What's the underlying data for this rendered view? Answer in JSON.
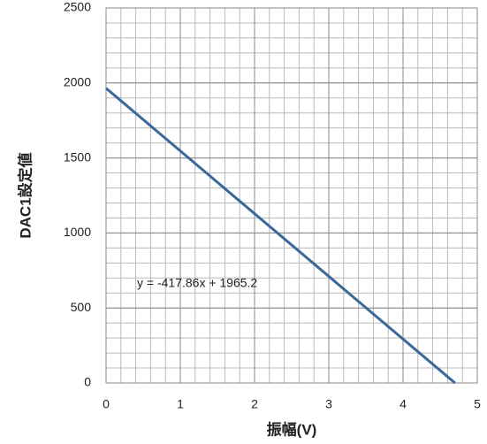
{
  "chart_data": {
    "type": "line",
    "x_label": "振幅(V)",
    "y_label": "DAC1設定値",
    "annotation": "y = -417.86x + 1965.2",
    "x": [
      0,
      4.7
    ],
    "series": [
      {
        "name": "DAC1",
        "color": "#3a6898",
        "values": [
          1965,
          0
        ]
      }
    ],
    "xlim": [
      0,
      5
    ],
    "xticks": [
      0,
      1,
      2,
      3,
      4,
      5
    ],
    "ylim": [
      0,
      2500
    ],
    "yticks": [
      0,
      500,
      1000,
      1500,
      2000,
      2500
    ],
    "grid": true,
    "x_minor_step": 0.2,
    "y_minor_step": 100
  }
}
